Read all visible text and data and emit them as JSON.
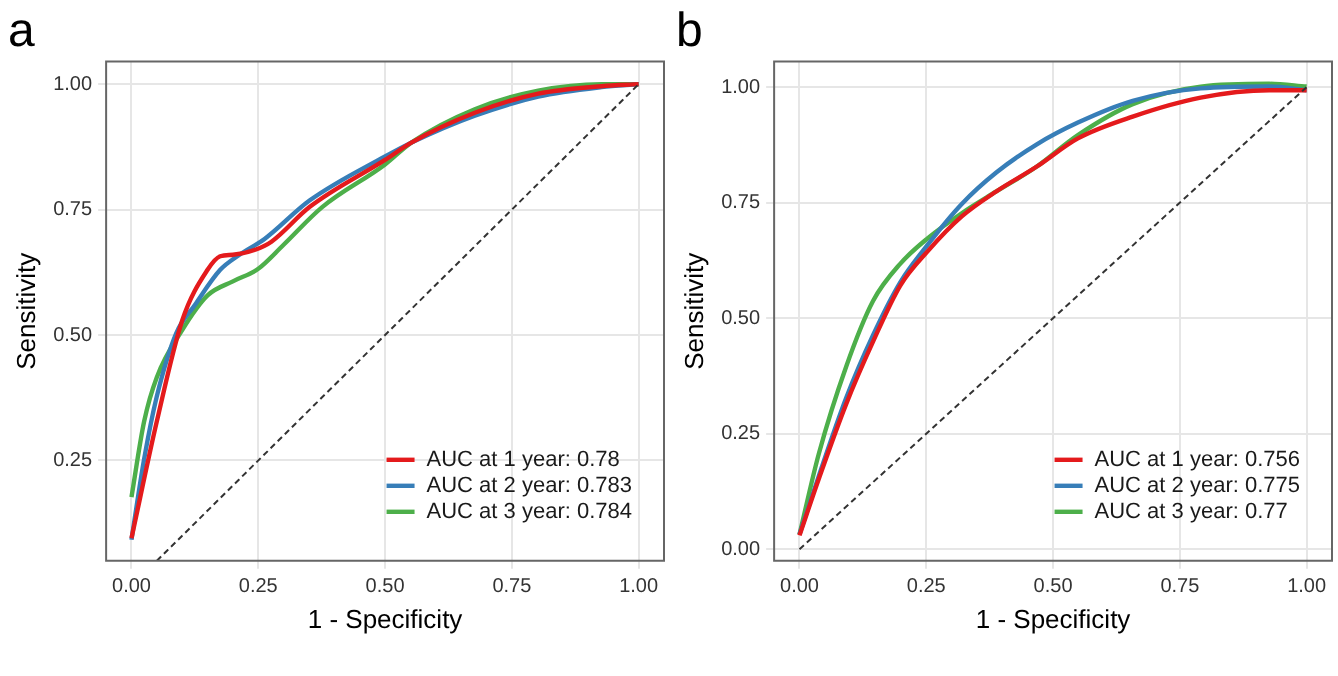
{
  "chart_data": [
    {
      "type": "line",
      "title": "a",
      "xlabel": "1 - Specificity",
      "ylabel": "Sensitivity",
      "xlim": [
        -0.05,
        1.05
      ],
      "ylim": [
        0.05,
        1.045
      ],
      "xticks": [
        {
          "value": 0,
          "label": "0.00"
        },
        {
          "value": 0.25,
          "label": "0.25"
        },
        {
          "value": 0.5,
          "label": "0.50"
        },
        {
          "value": 0.75,
          "label": "0.75"
        },
        {
          "value": 1,
          "label": "1.00"
        }
      ],
      "yticks": [
        {
          "value": 0.25,
          "label": "0.25"
        },
        {
          "value": 0.5,
          "label": "0.50"
        },
        {
          "value": 0.75,
          "label": "0.75"
        },
        {
          "value": 1,
          "label": "1.00"
        }
      ],
      "grid": true,
      "legend": "bottom right",
      "marker": "none",
      "series": [
        {
          "name": "AUC at 1 year: 0.78",
          "color": "#e41a1c",
          "x": [
            0,
            0.05,
            0.1,
            0.15,
            0.175,
            0.2,
            0.244,
            0.276,
            0.351,
            0.5,
            0.551,
            0.677,
            0.802,
            0.927,
            1
          ],
          "values": [
            0.095,
            0.328,
            0.529,
            0.63,
            0.657,
            0.66,
            0.67,
            0.686,
            0.755,
            0.849,
            0.883,
            0.943,
            0.981,
            0.996,
            1
          ]
        },
        {
          "name": "AUC at 2 year: 0.783",
          "color": "#377eb8",
          "x": [
            0,
            0.025,
            0.05,
            0.088,
            0.125,
            0.175,
            0.213,
            0.263,
            0.351,
            0.5,
            0.551,
            0.677,
            0.802,
            0.927,
            1
          ],
          "values": [
            0.092,
            0.253,
            0.378,
            0.503,
            0.56,
            0.63,
            0.66,
            0.692,
            0.768,
            0.856,
            0.883,
            0.937,
            0.975,
            0.994,
            1
          ]
        },
        {
          "name": "AUC at 3 year: 0.784",
          "color": "#4daf4a",
          "x": [
            0,
            0.025,
            0.05,
            0.1,
            0.15,
            0.2,
            0.25,
            0.3,
            0.376,
            0.5,
            0.551,
            0.677,
            0.802,
            0.927,
            1
          ],
          "values": [
            0.177,
            0.328,
            0.416,
            0.51,
            0.579,
            0.607,
            0.632,
            0.68,
            0.755,
            0.84,
            0.883,
            0.95,
            0.987,
            1.0,
            1
          ]
        },
        {
          "type": "line",
          "color": "#333333",
          "line_style": "dashed",
          "x": [
            0.05,
            1
          ],
          "values": [
            0.05,
            1
          ]
        }
      ]
    },
    {
      "type": "line",
      "title": "b",
      "xlabel": "1 - Specificity",
      "ylabel": "Sensitivity",
      "xlim": [
        -0.05,
        1.05
      ],
      "ylim": [
        -0.025,
        1.055
      ],
      "xticks": [
        {
          "value": 0,
          "label": "0.00"
        },
        {
          "value": 0.25,
          "label": "0.25"
        },
        {
          "value": 0.5,
          "label": "0.50"
        },
        {
          "value": 0.75,
          "label": "0.75"
        },
        {
          "value": 1,
          "label": "1.00"
        }
      ],
      "yticks": [
        {
          "value": 0,
          "label": "0.00"
        },
        {
          "value": 0.25,
          "label": "0.25"
        },
        {
          "value": 0.5,
          "label": "0.50"
        },
        {
          "value": 0.75,
          "label": "0.75"
        },
        {
          "value": 1,
          "label": "1.00"
        }
      ],
      "grid": true,
      "legend": "bottom right",
      "marker": "none",
      "series": [
        {
          "name": "AUC at 1 year: 0.756",
          "color": "#e41a1c",
          "x": [
            0,
            0.038,
            0.092,
            0.145,
            0.199,
            0.253,
            0.32,
            0.388,
            0.468,
            0.549,
            0.657,
            0.791,
            0.926,
            1
          ],
          "values": [
            0.03,
            0.152,
            0.314,
            0.449,
            0.571,
            0.645,
            0.72,
            0.774,
            0.828,
            0.889,
            0.936,
            0.977,
            0.993,
            0.993
          ]
        },
        {
          "name": "AUC at 2 year: 0.775",
          "color": "#377eb8",
          "x": [
            0,
            0.038,
            0.092,
            0.145,
            0.199,
            0.253,
            0.32,
            0.388,
            0.468,
            0.549,
            0.657,
            0.791,
            0.926,
            1
          ],
          "values": [
            0.032,
            0.158,
            0.327,
            0.463,
            0.578,
            0.659,
            0.747,
            0.815,
            0.876,
            0.923,
            0.97,
            0.997,
            1.001,
            0.993
          ]
        },
        {
          "name": "AUC at 3 year: 0.77",
          "color": "#4daf4a",
          "x": [
            0,
            0.038,
            0.092,
            0.145,
            0.199,
            0.253,
            0.32,
            0.388,
            0.468,
            0.549,
            0.657,
            0.791,
            0.926,
            1
          ],
          "values": [
            0.032,
            0.206,
            0.395,
            0.537,
            0.618,
            0.673,
            0.727,
            0.774,
            0.828,
            0.896,
            0.963,
            1.001,
            1.007,
            1.001
          ]
        },
        {
          "type": "line",
          "color": "#333333",
          "line_style": "dashed",
          "x": [
            0,
            1
          ],
          "values": [
            0,
            1
          ]
        }
      ]
    }
  ]
}
